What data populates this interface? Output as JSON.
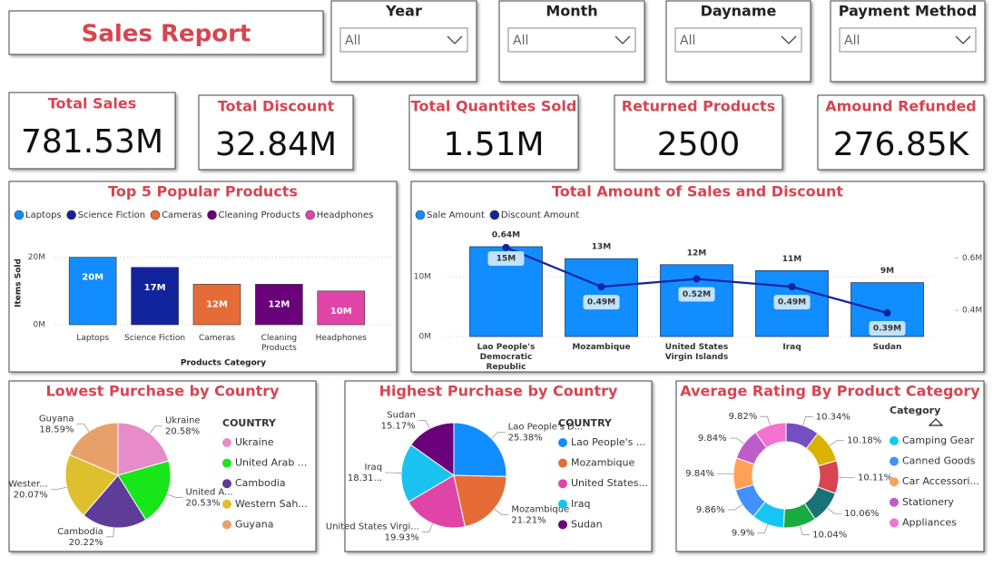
{
  "header": {
    "title": "Sales Report"
  },
  "slicers": [
    {
      "label": "Year",
      "value": "All"
    },
    {
      "label": "Month",
      "value": "All"
    },
    {
      "label": "Dayname",
      "value": "All"
    },
    {
      "label": "Payment Method",
      "value": "All"
    }
  ],
  "cards": [
    {
      "label": "Total Sales",
      "value": "781.53M"
    },
    {
      "label": "Total Discount",
      "value": "32.84M"
    },
    {
      "label": "Total Quantites Sold",
      "value": "1.51M"
    },
    {
      "label": "Returned Products",
      "value": "2500"
    },
    {
      "label": "Amound Refunded",
      "value": "276.85K"
    }
  ],
  "chart_data": [
    {
      "type": "bar",
      "title": "Top 5 Popular Products",
      "x_label": "Products Category",
      "y_label": "Items Sold",
      "categories": [
        "Laptops",
        "Science Fiction",
        "Cameras",
        "Cleaning Products",
        "Headphones"
      ],
      "colors": [
        "#118DFF",
        "#12239E",
        "#E66C37",
        "#6B007B",
        "#E044A7"
      ],
      "values": [
        20000000,
        17000000,
        12000000,
        12000000,
        10000000
      ],
      "value_labels": [
        "20M",
        "17M",
        "12M",
        "12M",
        "10M"
      ],
      "ylim": [
        0,
        25000000
      ],
      "yticks": [
        {
          "value": 0,
          "label": "0M"
        },
        {
          "value": 20000000,
          "label": "20M"
        }
      ],
      "grid": true,
      "legend": "top-left"
    },
    {
      "type": "combo",
      "title": "Total Amount of Sales and Discount",
      "categories": [
        "Lao People's Democratic Republic",
        "Mozambique",
        "United States Virgin Islands",
        "Iraq",
        "Sudan"
      ],
      "series": [
        {
          "name": "Sale Amount",
          "color": "#118DFF",
          "kind": "bar",
          "values": [
            15000000,
            13000000,
            12000000,
            11000000,
            9000000
          ],
          "value_labels": [
            "15M",
            "13M",
            "12M",
            "11M",
            "9M"
          ]
        },
        {
          "name": "Discount Amount",
          "color": "#12239E",
          "kind": "line",
          "axis": "y2",
          "values": [
            640000,
            490000,
            520000,
            490000,
            390000
          ],
          "value_labels": [
            "0.64M",
            "0.49M",
            "0.52M",
            "0.49M",
            "0.39M"
          ]
        }
      ],
      "ylim": [
        0,
        17500000
      ],
      "yticks": [
        {
          "value": 0,
          "label": "0M"
        },
        {
          "value": 10000000,
          "label": "10M"
        }
      ],
      "y2lim": [
        300000,
        700000
      ],
      "y2ticks": [
        {
          "value": 400000,
          "label": "0.4M"
        },
        {
          "value": 600000,
          "label": "0.6M"
        }
      ],
      "grid": true,
      "legend": "top-left"
    },
    {
      "type": "pie",
      "title": "Lowest Purchase by Country",
      "legend_title": "COUNTRY",
      "categories": [
        "Ukraine",
        "United Arab ...",
        "Cambodia",
        "Western Sah...",
        "Guyana"
      ],
      "slice_names": [
        "Ukraine",
        "United A...",
        "Cambodia",
        "Wester...",
        "Guyana"
      ],
      "values": [
        20.58,
        20.53,
        20.22,
        20.07,
        18.59
      ],
      "value_labels": [
        "20.58%",
        "20.53%",
        "20.22%",
        "20.07%",
        "18.59%"
      ],
      "colors": [
        "#E88BC9",
        "#19E619",
        "#5E3D99",
        "#DEC02E",
        "#E8A06A"
      ],
      "legend": "right"
    },
    {
      "type": "pie",
      "title": "Highest Purchase by Country",
      "legend_title": "COUNTRY",
      "categories": [
        "Lao People's ...",
        "Mozambique",
        "United States...",
        "Iraq",
        "Sudan"
      ],
      "slice_names": [
        "Lao People's D...",
        "Mozambique",
        "United States Virgi...",
        "Iraq",
        "Sudan"
      ],
      "values": [
        25.38,
        21.21,
        19.93,
        18.31,
        15.17
      ],
      "value_labels": [
        "25.38%",
        "21.21%",
        "19.93%",
        "18.31...",
        "15.17%"
      ],
      "colors": [
        "#118DFF",
        "#E66C37",
        "#E044A7",
        "#1AC3EF",
        "#6B007B"
      ],
      "legend": "right"
    },
    {
      "type": "donut",
      "title": "Average Rating By Product Category",
      "legend_title": "Category",
      "categories": [
        null,
        null,
        null,
        null,
        null,
        "Camping Gear",
        "Canned Goods",
        "Car Accessori...",
        "Stationery",
        "Appliances"
      ],
      "values": [
        10.34,
        10.18,
        10.11,
        10.06,
        10.04,
        9.9,
        9.86,
        9.84,
        9.84,
        9.82
      ],
      "value_labels": [
        "10.34%",
        "10.18%",
        "10.11%",
        "10.06%",
        "10.04%",
        "9.9%",
        "9.86%",
        "9.84%",
        "9.84%",
        "9.82%"
      ],
      "colors": [
        "#744EC2",
        "#D9B300",
        "#D64550",
        "#197278",
        "#1AAB40",
        "#15C6F4",
        "#4092FF",
        "#FFA058",
        "#BE5DC9",
        "#F472D0"
      ],
      "legend": "right"
    }
  ]
}
